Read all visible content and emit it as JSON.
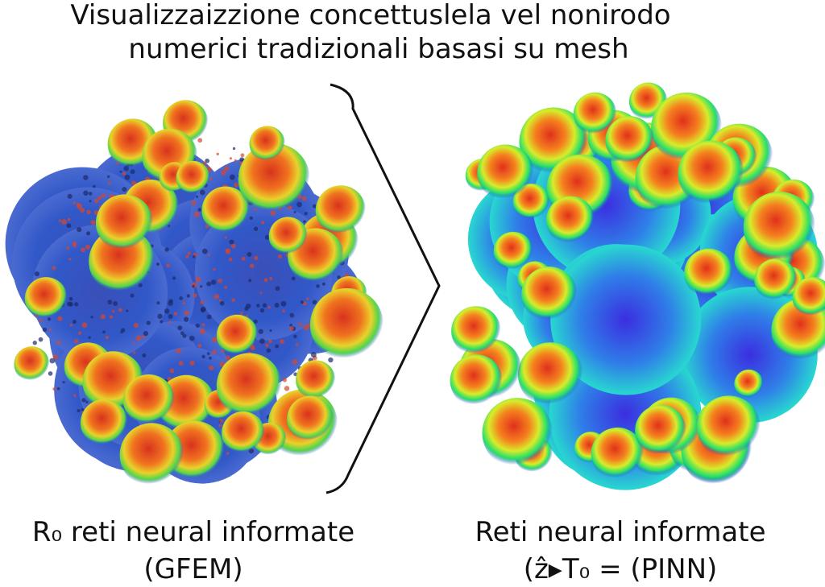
{
  "header": {
    "title_lines": [
      "Visualizzaizzione concettuslela vel nonirodo",
      "numerici tradizionali basasi su mesh"
    ]
  },
  "panels": [
    {
      "label_lines": [
        "R₀ reti neural informate",
        "(GFEM)"
      ]
    },
    {
      "label_lines": [
        "Reti neural informate",
        "(ẑ▸T₀ = (PINN)"
      ]
    }
  ]
}
